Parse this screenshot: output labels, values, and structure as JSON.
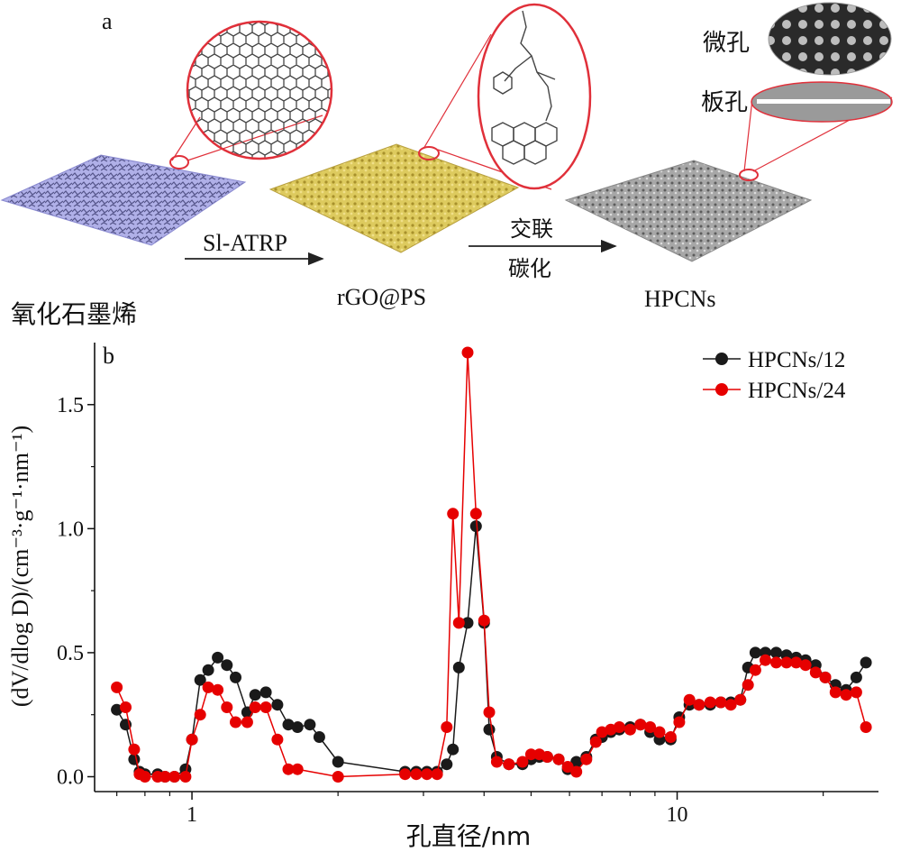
{
  "panel_a": {
    "label": "a",
    "items": [
      {
        "name": "氧化石墨烯",
        "color": "#a9a9e0"
      },
      {
        "name": "rGO@PS",
        "color": "#d8c65a"
      },
      {
        "name": "HPCNs",
        "color": "#9a9a9a"
      }
    ],
    "arrow1_label": "Sl-ATRP",
    "arrow2_label_line1": "交联",
    "arrow2_label_line2": "碳化",
    "pore_labels": [
      "微孔",
      "板孔"
    ],
    "highlight_color": "#e0303a"
  },
  "chart_data": {
    "type": "line",
    "panel_label": "b",
    "xlabel": "孔直径/nm",
    "ylabel": "(dV/dlog D)/(cm⁻³·g⁻¹·nm⁻¹)",
    "xscale": "log",
    "xlim": [
      0.63,
      26
    ],
    "ylim": [
      -0.06,
      1.75
    ],
    "x_ticks": [
      1,
      10
    ],
    "y_ticks": [
      0.0,
      0.5,
      1.0,
      1.5
    ],
    "y_tick_labels": [
      "0.0",
      "0.5",
      "1.0",
      "1.5"
    ],
    "legend_position": "top-right",
    "series": [
      {
        "name": "HPCNs/12",
        "color": "#1a1a1a",
        "x": [
          0.7,
          0.73,
          0.76,
          0.78,
          0.8,
          0.85,
          0.88,
          0.92,
          0.97,
          1.0,
          1.04,
          1.08,
          1.13,
          1.18,
          1.23,
          1.3,
          1.35,
          1.42,
          1.5,
          1.58,
          1.65,
          1.75,
          1.83,
          2.0,
          2.75,
          2.9,
          3.05,
          3.2,
          3.35,
          3.45,
          3.55,
          3.7,
          3.85,
          4.0,
          4.1,
          4.25,
          4.5,
          4.8,
          5.0,
          5.2,
          5.4,
          5.7,
          5.95,
          6.2,
          6.5,
          6.8,
          7.0,
          7.3,
          7.6,
          8.0,
          8.4,
          8.8,
          9.2,
          9.7,
          10.1,
          10.6,
          11.1,
          11.7,
          12.3,
          12.9,
          13.5,
          14.0,
          14.5,
          15.2,
          16.0,
          16.8,
          17.6,
          18.4,
          19.3,
          20.2,
          21.2,
          22.3,
          23.4,
          24.5
        ],
        "y": [
          0.27,
          0.21,
          0.07,
          0.02,
          0.01,
          0.01,
          0.0,
          0.0,
          0.03,
          0.15,
          0.39,
          0.43,
          0.48,
          0.45,
          0.4,
          0.26,
          0.33,
          0.34,
          0.29,
          0.21,
          0.2,
          0.21,
          0.16,
          0.06,
          0.02,
          0.02,
          0.02,
          0.02,
          0.05,
          0.11,
          0.44,
          0.62,
          1.01,
          0.62,
          0.19,
          0.08,
          0.05,
          0.05,
          0.07,
          0.08,
          0.08,
          0.07,
          0.03,
          0.06,
          0.08,
          0.15,
          0.16,
          0.18,
          0.19,
          0.2,
          0.21,
          0.18,
          0.15,
          0.15,
          0.24,
          0.29,
          0.29,
          0.29,
          0.3,
          0.3,
          0.31,
          0.44,
          0.5,
          0.5,
          0.5,
          0.49,
          0.48,
          0.47,
          0.45,
          0.4,
          0.37,
          0.35,
          0.4,
          0.46
        ]
      },
      {
        "name": "HPCNs/24",
        "color": "#e60000",
        "x": [
          0.7,
          0.73,
          0.76,
          0.78,
          0.8,
          0.85,
          0.88,
          0.92,
          0.97,
          1.0,
          1.04,
          1.08,
          1.13,
          1.18,
          1.23,
          1.3,
          1.35,
          1.42,
          1.5,
          1.58,
          1.65,
          2.0,
          2.75,
          2.9,
          3.05,
          3.2,
          3.35,
          3.45,
          3.55,
          3.7,
          3.85,
          4.0,
          4.1,
          4.25,
          4.5,
          4.8,
          5.0,
          5.2,
          5.4,
          5.7,
          5.95,
          6.2,
          6.5,
          6.8,
          7.0,
          7.3,
          7.6,
          8.0,
          8.4,
          8.8,
          9.2,
          9.7,
          10.1,
          10.6,
          11.1,
          11.7,
          12.3,
          12.9,
          13.5,
          14.0,
          14.5,
          15.2,
          16.0,
          16.8,
          17.6,
          18.4,
          19.3,
          20.2,
          21.2,
          22.3,
          23.4,
          24.5
        ],
        "y": [
          0.36,
          0.28,
          0.11,
          0.01,
          0.0,
          0.0,
          0.0,
          0.0,
          0.0,
          0.15,
          0.25,
          0.36,
          0.35,
          0.28,
          0.22,
          0.22,
          0.28,
          0.28,
          0.15,
          0.03,
          0.03,
          0.0,
          0.01,
          0.01,
          0.01,
          0.01,
          0.2,
          1.06,
          0.62,
          1.71,
          1.06,
          0.63,
          0.26,
          0.06,
          0.05,
          0.06,
          0.09,
          0.09,
          0.08,
          0.07,
          0.04,
          0.02,
          0.07,
          0.14,
          0.18,
          0.19,
          0.2,
          0.19,
          0.21,
          0.2,
          0.18,
          0.16,
          0.22,
          0.31,
          0.29,
          0.3,
          0.3,
          0.29,
          0.31,
          0.37,
          0.43,
          0.47,
          0.46,
          0.46,
          0.46,
          0.45,
          0.42,
          0.4,
          0.34,
          0.33,
          0.34,
          0.2
        ]
      }
    ]
  }
}
